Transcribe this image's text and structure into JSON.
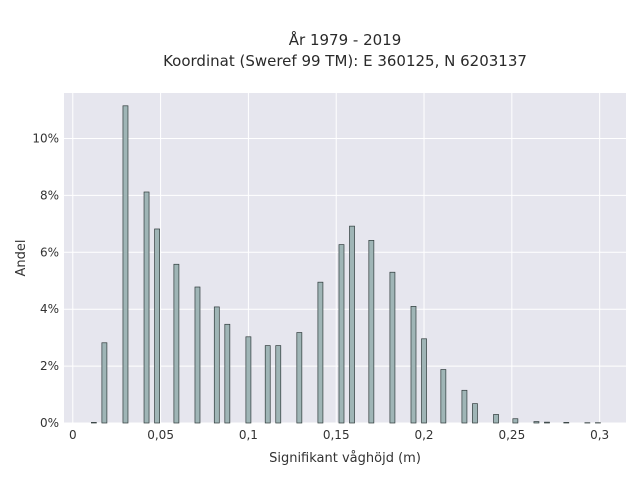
{
  "chart_data": {
    "type": "bar",
    "title": [
      "År 1979 - 2019",
      "Koordinat (Sweref 99 TM): E 360125, N 6203137"
    ],
    "xlabel": "Signifikant våghöjd (m)",
    "ylabel": "Andel",
    "xlim": [
      -0.005,
      0.315
    ],
    "ylim": [
      0,
      11.6
    ],
    "x_ticks": [
      {
        "value": 0,
        "label": "0"
      },
      {
        "value": 0.05,
        "label": "0,05"
      },
      {
        "value": 0.1,
        "label": "0,1"
      },
      {
        "value": 0.15,
        "label": "0,15"
      },
      {
        "value": 0.2,
        "label": "0,2"
      },
      {
        "value": 0.25,
        "label": "0,25"
      },
      {
        "value": 0.3,
        "label": "0,3"
      }
    ],
    "y_ticks": [
      {
        "value": 0,
        "label": "0%"
      },
      {
        "value": 2,
        "label": "2%"
      },
      {
        "value": 4,
        "label": "4%"
      },
      {
        "value": 6,
        "label": "6%"
      },
      {
        "value": 8,
        "label": "8%"
      },
      {
        "value": 10,
        "label": "10%"
      }
    ],
    "bar_width": 0.00286,
    "grid": true,
    "background": "#e6e6ee",
    "bar_color": "#9fb5b6",
    "bar_edge_color": "#2f3b3b",
    "x": [
      0.012,
      0.018,
      0.03,
      0.042,
      0.048,
      0.059,
      0.071,
      0.082,
      0.088,
      0.1,
      0.111,
      0.117,
      0.129,
      0.141,
      0.153,
      0.159,
      0.17,
      0.182,
      0.194,
      0.2,
      0.211,
      0.223,
      0.229,
      0.241,
      0.252,
      0.264,
      0.27,
      0.281,
      0.293,
      0.299
    ],
    "values": [
      0.02,
      2.82,
      11.15,
      8.12,
      6.82,
      5.58,
      4.78,
      4.08,
      3.47,
      3.03,
      2.72,
      2.72,
      3.18,
      4.95,
      6.27,
      6.92,
      6.42,
      5.3,
      4.1,
      2.96,
      1.88,
      1.15,
      0.68,
      0.3,
      0.15,
      0.05,
      0.03,
      0.02,
      0.01,
      0.01
    ]
  }
}
